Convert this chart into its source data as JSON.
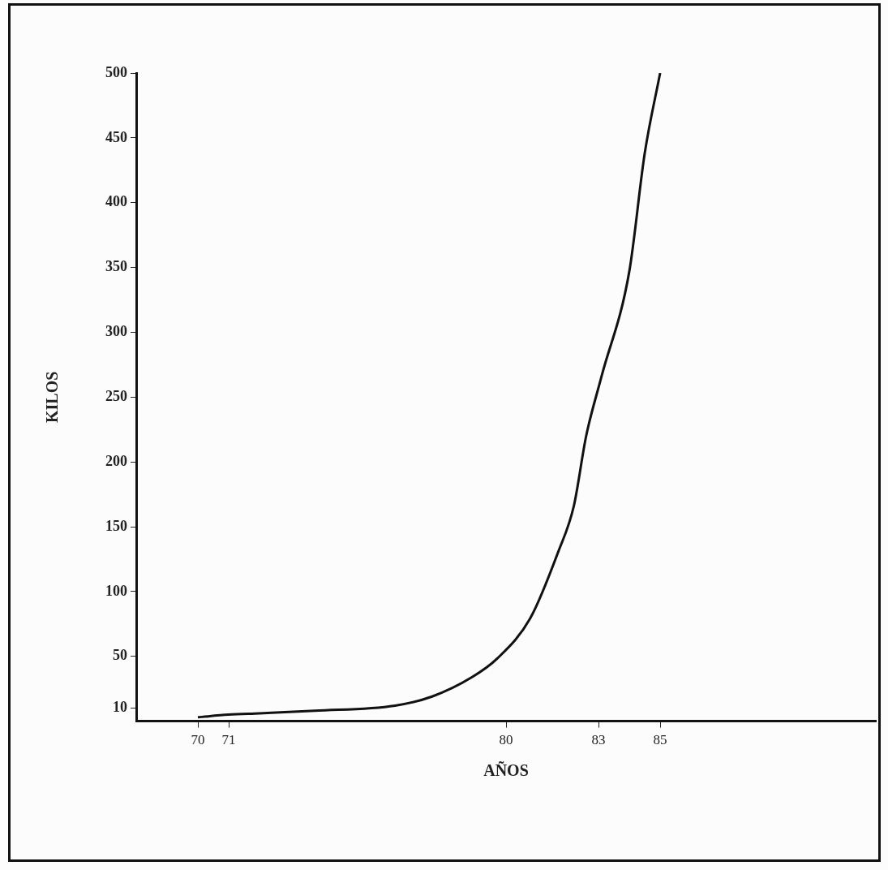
{
  "chart_data": {
    "type": "line",
    "xlabel": "AÑOS",
    "ylabel": "KILOS",
    "x": [
      70,
      71,
      72,
      73.8,
      76.4,
      77.6,
      78.9,
      79.7,
      80.8,
      81.7,
      82.2,
      82.6,
      83.1,
      84,
      84.5,
      85
    ],
    "values": [
      3,
      5,
      6,
      8,
      12,
      19,
      34,
      48,
      80,
      131,
      166,
      220,
      266,
      347,
      438,
      500
    ],
    "color": "#111111",
    "marker": "none",
    "xlim": [
      68,
      92
    ],
    "xticks": [
      70,
      71,
      80,
      83,
      85
    ],
    "ylim": [
      0,
      500
    ],
    "yticks": [
      10,
      50,
      100,
      150,
      200,
      250,
      300,
      350,
      400,
      450,
      500
    ]
  }
}
